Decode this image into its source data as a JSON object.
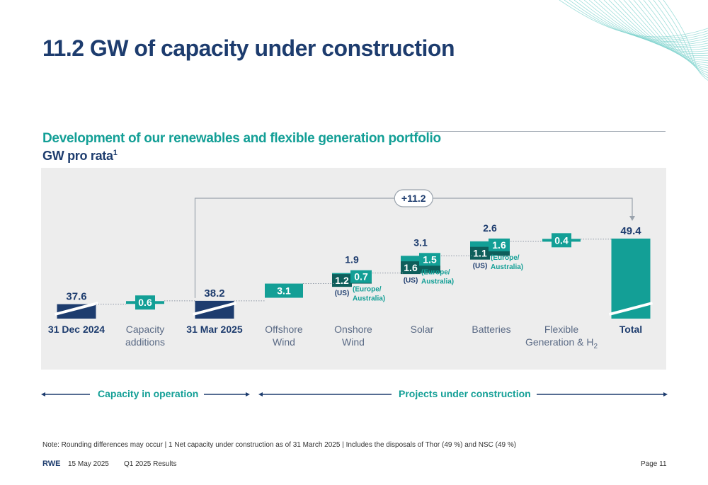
{
  "title": "11.2 GW of capacity under construction",
  "subtitle": "Development of our renewables and flexible generation portfolio",
  "unit_label": "GW pro rata",
  "unit_footnote": "1",
  "chart_data": {
    "type": "waterfall",
    "categories": [
      {
        "label": "31 Dec 2024",
        "bold": true
      },
      {
        "label": "Capacity additions",
        "bold": false
      },
      {
        "label": "31 Mar 2025",
        "bold": true
      },
      {
        "label": "Offshore Wind",
        "bold": false
      },
      {
        "label": "Onshore Wind",
        "bold": false
      },
      {
        "label": "Solar",
        "bold": false
      },
      {
        "label": "Batteries",
        "bold": false
      },
      {
        "label": "Flexible Generation & H2",
        "bold": false
      },
      {
        "label": "Total",
        "bold": true
      }
    ],
    "steps": [
      {
        "category": "31 Dec 2024",
        "kind": "total",
        "value": 37.6,
        "label": "37.6"
      },
      {
        "category": "Capacity additions",
        "kind": "increment",
        "value": 0.6,
        "label": "0.6"
      },
      {
        "category": "31 Mar 2025",
        "kind": "total",
        "value": 38.2,
        "label": "38.2"
      },
      {
        "category": "Offshore Wind",
        "kind": "increment",
        "value": 3.1,
        "label": "3.1"
      },
      {
        "category": "Onshore Wind",
        "kind": "increment",
        "value": 1.9,
        "label": "1.9",
        "parts": [
          {
            "value": 1.2,
            "label": "1.2",
            "region": "(US)"
          },
          {
            "value": 0.7,
            "label": "0.7",
            "region": "(Europe/ Australia)"
          }
        ]
      },
      {
        "category": "Solar",
        "kind": "increment",
        "value": 3.1,
        "label": "3.1",
        "parts": [
          {
            "value": 1.6,
            "label": "1.6",
            "region": "(US)"
          },
          {
            "value": 1.5,
            "label": "1.5",
            "region": "(Europe/ Australia)"
          }
        ]
      },
      {
        "category": "Batteries",
        "kind": "increment",
        "value": 2.6,
        "label": "2.6",
        "parts": [
          {
            "value": 1.1,
            "label": "1.1",
            "region": "(US)"
          },
          {
            "value": 1.6,
            "label": "1.6",
            "region": "(Europe/ Australia)"
          }
        ]
      },
      {
        "category": "Flexible Generation & H2",
        "kind": "increment",
        "value": 0.4,
        "label": "0.4"
      },
      {
        "category": "Total",
        "kind": "total",
        "value": 49.4,
        "label": "49.4"
      }
    ],
    "bracket": {
      "from": "31 Mar 2025",
      "to": "Total",
      "label": "+11.2"
    },
    "axis_break": true,
    "colors": {
      "navy": "#1d3c6e",
      "teal": "#139f96",
      "dark_teal": "#0e5e5b",
      "background": "#ededed"
    }
  },
  "phases": {
    "operation": "Capacity in operation",
    "construction": "Projects under construction"
  },
  "footnote": "Note: Rounding differences may occur | 1 Net capacity under construction as of 31 March 2025 | Includes the disposals of Thor (49 %) and NSC (49 %)",
  "footer": {
    "brand": "RWE",
    "date": "15 May 2025",
    "report": "Q1 2025 Results",
    "page": "Page 11"
  }
}
